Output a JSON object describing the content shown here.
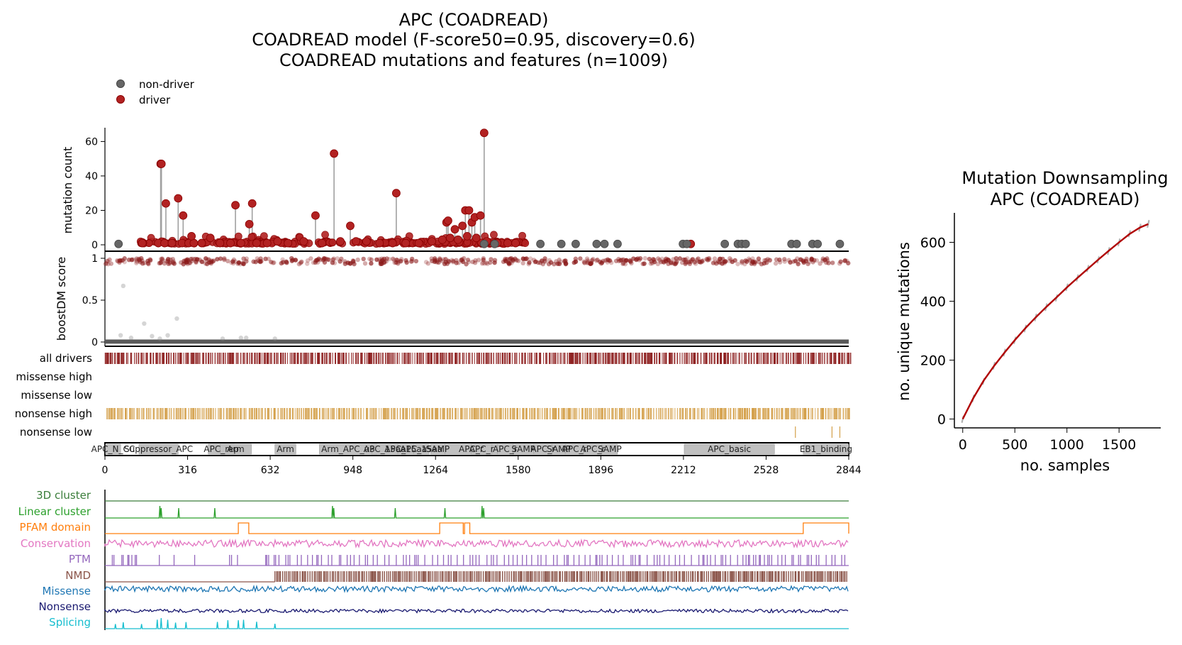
{
  "colors": {
    "driver": "#b22222",
    "driver_edge": "#8b0000",
    "nondriver": "#666666",
    "stem": "#a0a0a0",
    "drivers_bar": "#8b1a1a",
    "nonsense_bar": "#d4a04a",
    "domain_fill": "#c0c0c0",
    "trendline": "#b00000",
    "trace": "#b0b0b0"
  },
  "chart_data": [
    {
      "type": "scatter",
      "panel": "needle-plot",
      "title_lines": [
        "APC (COADREAD)",
        "COADREAD model (F-score50=0.95, discovery=0.6)",
        "COADREAD mutations and features (n=1009)"
      ],
      "legend": [
        {
          "name": "non-driver",
          "color": "#666666"
        },
        {
          "name": "driver",
          "color": "#b22222"
        }
      ],
      "legend_placement": "top-left",
      "ylabel": "mutation count",
      "ylim": [
        0,
        68
      ],
      "xlim": [
        0,
        2844
      ],
      "yticks": [
        0,
        20,
        40,
        60
      ],
      "grid": false,
      "stems": [
        {
          "x": 213,
          "y": 47,
          "driver": true
        },
        {
          "x": 216,
          "y": 47,
          "driver": true
        },
        {
          "x": 233,
          "y": 24,
          "driver": true
        },
        {
          "x": 280,
          "y": 27,
          "driver": true
        },
        {
          "x": 299,
          "y": 17,
          "driver": true
        },
        {
          "x": 331,
          "y": 5,
          "driver": true
        },
        {
          "x": 403,
          "y": 4,
          "driver": true
        },
        {
          "x": 499,
          "y": 23,
          "driver": true
        },
        {
          "x": 552,
          "y": 12,
          "driver": true
        },
        {
          "x": 563,
          "y": 24,
          "driver": true
        },
        {
          "x": 805,
          "y": 17,
          "driver": true
        },
        {
          "x": 876,
          "y": 53,
          "driver": true
        },
        {
          "x": 938,
          "y": 11,
          "driver": true
        },
        {
          "x": 1114,
          "y": 30,
          "driver": true
        },
        {
          "x": 1306,
          "y": 13,
          "driver": true
        },
        {
          "x": 1312,
          "y": 14,
          "driver": true
        },
        {
          "x": 1338,
          "y": 9,
          "driver": true
        },
        {
          "x": 1367,
          "y": 11,
          "driver": true
        },
        {
          "x": 1378,
          "y": 20,
          "driver": true
        },
        {
          "x": 1392,
          "y": 20,
          "driver": true
        },
        {
          "x": 1403,
          "y": 13,
          "driver": true
        },
        {
          "x": 1414,
          "y": 16,
          "driver": true
        },
        {
          "x": 1436,
          "y": 17,
          "driver": true
        },
        {
          "x": 1450,
          "y": 65,
          "driver": true
        }
      ],
      "driver_points_low": [
        {
          "x": 143,
          "y": 1
        },
        {
          "x": 204,
          "y": 1
        },
        {
          "x": 228,
          "y": 1
        },
        {
          "x": 256,
          "y": 1
        },
        {
          "x": 295,
          "y": 1
        },
        {
          "x": 320,
          "y": 1
        },
        {
          "x": 340,
          "y": 1
        },
        {
          "x": 370,
          "y": 1
        },
        {
          "x": 440,
          "y": 1
        },
        {
          "x": 480,
          "y": 1
        },
        {
          "x": 520,
          "y": 1
        },
        {
          "x": 580,
          "y": 1
        },
        {
          "x": 620,
          "y": 1
        },
        {
          "x": 660,
          "y": 2
        },
        {
          "x": 700,
          "y": 1
        },
        {
          "x": 760,
          "y": 2
        },
        {
          "x": 830,
          "y": 1
        },
        {
          "x": 900,
          "y": 2
        },
        {
          "x": 960,
          "y": 2
        },
        {
          "x": 1000,
          "y": 2
        },
        {
          "x": 1050,
          "y": 1
        },
        {
          "x": 1100,
          "y": 1
        },
        {
          "x": 1150,
          "y": 1
        },
        {
          "x": 1200,
          "y": 1
        },
        {
          "x": 1250,
          "y": 2
        },
        {
          "x": 1290,
          "y": 3
        },
        {
          "x": 1320,
          "y": 4
        },
        {
          "x": 1350,
          "y": 3
        },
        {
          "x": 1385,
          "y": 5
        },
        {
          "x": 1420,
          "y": 4
        },
        {
          "x": 1460,
          "y": 2
        },
        {
          "x": 1500,
          "y": 1
        },
        {
          "x": 1540,
          "y": 1
        },
        {
          "x": 1570,
          "y": 1
        },
        {
          "x": 2240,
          "y": 0.5
        }
      ],
      "nondriver_points": [
        {
          "x": 52,
          "y": 0.5
        },
        {
          "x": 1450,
          "y": 0.5
        },
        {
          "x": 1490,
          "y": 0.5
        },
        {
          "x": 1665,
          "y": 0.5
        },
        {
          "x": 1745,
          "y": 0.5
        },
        {
          "x": 1800,
          "y": 0.5
        },
        {
          "x": 1880,
          "y": 0.5
        },
        {
          "x": 1910,
          "y": 0.5
        },
        {
          "x": 1960,
          "y": 0.5
        },
        {
          "x": 2210,
          "y": 0.5
        },
        {
          "x": 2225,
          "y": 0.5
        },
        {
          "x": 2370,
          "y": 0.5
        },
        {
          "x": 2420,
          "y": 0.5
        },
        {
          "x": 2435,
          "y": 0.5
        },
        {
          "x": 2450,
          "y": 0.5
        },
        {
          "x": 2625,
          "y": 0.5
        },
        {
          "x": 2645,
          "y": 0.5
        },
        {
          "x": 2705,
          "y": 0.5
        },
        {
          "x": 2725,
          "y": 0.5
        },
        {
          "x": 2810,
          "y": 0.5
        }
      ]
    },
    {
      "type": "scatter",
      "panel": "boostdm-score",
      "ylabel": "boostDM score",
      "ylim": [
        0,
        1
      ],
      "yticks": [
        0,
        0.5,
        1
      ],
      "ytick_labels": [
        "0",
        "0.5",
        "1"
      ],
      "high_band": [
        0.93,
        1.0
      ],
      "low_band": [
        0,
        0.03
      ],
      "outliers": [
        {
          "x": 70,
          "y": 0.67
        },
        {
          "x": 150,
          "y": 0.22
        },
        {
          "x": 275,
          "y": 0.28
        },
        {
          "x": 60,
          "y": 0.08
        },
        {
          "x": 180,
          "y": 0.07
        },
        {
          "x": 240,
          "y": 0.08
        },
        {
          "x": 100,
          "y": 0.05
        },
        {
          "x": 210,
          "y": 0.04
        },
        {
          "x": 450,
          "y": 0.04
        },
        {
          "x": 520,
          "y": 0.05
        },
        {
          "x": 540,
          "y": 0.05
        },
        {
          "x": 650,
          "y": 0.04
        }
      ]
    },
    {
      "type": "table",
      "panel": "mutation-tracks",
      "tracks": [
        {
          "label": "all drivers",
          "color": "#8b1a1a",
          "density": "high",
          "range": [
            0,
            2844
          ]
        },
        {
          "label": "missense high",
          "color": "#8b1a1a",
          "density": "none",
          "range": [
            0,
            0
          ]
        },
        {
          "label": "missense low",
          "color": "#8b1a1a",
          "density": "none",
          "range": [
            0,
            0
          ]
        },
        {
          "label": "nonsense high",
          "color": "#d4a04a",
          "density": "high",
          "range": [
            0,
            2844
          ]
        },
        {
          "label": "nonsense low",
          "color": "#d4a04a",
          "density": "sparse",
          "positions": [
            2640,
            2780,
            2810
          ]
        }
      ]
    },
    {
      "type": "table",
      "panel": "protein-domains",
      "xticks": [
        0,
        316,
        632,
        948,
        1264,
        1580,
        1896,
        2212,
        2528,
        2844
      ],
      "domains": [
        {
          "label": "APC_N_CC",
          "start": 2,
          "end": 60
        },
        {
          "label": "Suppressor_APC",
          "start": 130,
          "end": 280
        },
        {
          "label": "APC_rep",
          "start": 395,
          "end": 495
        },
        {
          "label": "Arm",
          "start": 440,
          "end": 560
        },
        {
          "label": "Arm",
          "start": 650,
          "end": 730
        },
        {
          "label": "Arm_APC_u3",
          "start": 820,
          "end": 1040
        },
        {
          "label": "APC_15aa",
          "start": 1020,
          "end": 1120
        },
        {
          "label": "APC_15aa",
          "start": 1120,
          "end": 1180
        },
        {
          "label": "APC_15aa",
          "start": 1180,
          "end": 1240
        },
        {
          "label": "SAMP",
          "start": 1245,
          "end": 1300
        },
        {
          "label": "APC_r",
          "start": 1300,
          "end": 1500
        },
        {
          "label": "APC_r",
          "start": 1400,
          "end": 1480
        },
        {
          "label": "APC_r",
          "start": 1500,
          "end": 1560
        },
        {
          "label": "SAMP",
          "start": 1560,
          "end": 1640
        },
        {
          "label": "APC_r",
          "start": 1640,
          "end": 1710
        },
        {
          "label": "SAMP",
          "start": 1710,
          "end": 1760
        },
        {
          "label": "APC_r",
          "start": 1760,
          "end": 1830
        },
        {
          "label": "APC_r",
          "start": 1830,
          "end": 1900
        },
        {
          "label": "SAMP",
          "start": 1900,
          "end": 1960
        },
        {
          "label": "APC_basic",
          "start": 2215,
          "end": 2560
        },
        {
          "label": "EB1_binding",
          "start": 2670,
          "end": 2844
        }
      ]
    },
    {
      "type": "line",
      "panel": "feature-tracks",
      "tracks": [
        {
          "label": "3D cluster",
          "color": "#3a7d3a"
        },
        {
          "label": "Linear cluster",
          "color": "#2ca02c",
          "peaks": [
            210,
            215,
            282,
            420,
            870,
            875,
            1110,
            1300,
            1442,
            1448
          ]
        },
        {
          "label": "PFAM domain",
          "color": "#ff7f0e",
          "segments": [
            [
              510,
              550
            ],
            [
              1280,
              1370
            ],
            [
              1375,
              1395
            ],
            [
              2670,
              2844
            ]
          ]
        },
        {
          "label": "Conservation",
          "color": "#e377c2"
        },
        {
          "label": "PTM",
          "color": "#9467bd"
        },
        {
          "label": "NMD",
          "color": "#8c564b",
          "start": 650
        },
        {
          "label": "Missense",
          "color": "#1f77b4"
        },
        {
          "label": "Nonsense",
          "color": "#191970"
        },
        {
          "label": "Splicing",
          "color": "#17becf",
          "peaks": [
            40,
            70,
            140,
            200,
            215,
            240,
            270,
            310,
            430,
            470,
            510,
            530,
            580,
            650
          ]
        }
      ]
    },
    {
      "type": "line",
      "panel": "downsampling",
      "title_lines": [
        "Mutation Downsampling",
        "APC (COADREAD)"
      ],
      "xlabel": "no. samples",
      "ylabel": "no. unique mutations",
      "xlim": [
        -80,
        1900
      ],
      "ylim": [
        -30,
        700
      ],
      "xticks": [
        0,
        500,
        1000,
        1500
      ],
      "yticks": [
        0,
        200,
        400,
        600
      ],
      "grid": false,
      "series": [
        {
          "x": [
            0,
            100,
            200,
            300,
            400,
            500,
            600,
            700,
            800,
            900,
            1000,
            1100,
            1200,
            1300,
            1400,
            1500,
            1600,
            1700,
            1780
          ],
          "values": [
            0,
            70,
            130,
            180,
            225,
            268,
            308,
            345,
            380,
            413,
            447,
            479,
            510,
            541,
            571,
            600,
            628,
            650,
            662
          ]
        }
      ]
    }
  ]
}
